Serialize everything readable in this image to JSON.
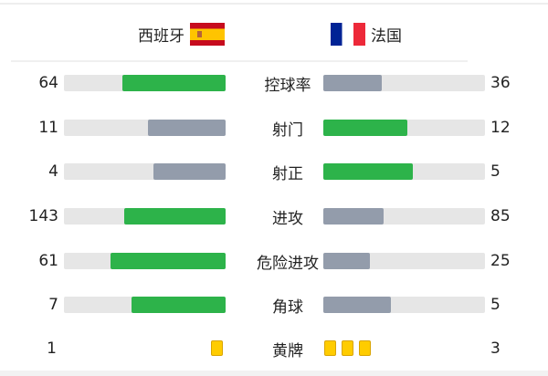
{
  "teams": {
    "home": {
      "name": "西班牙",
      "flag": "spain-flag"
    },
    "away": {
      "name": "法国",
      "flag": "france-flag"
    }
  },
  "colors": {
    "leader": "#2db34a",
    "trailer": "#939cab",
    "track": "#e6e6e6",
    "yellow": "#ffcc00"
  },
  "stats": [
    {
      "label": "控球率",
      "home": "64",
      "away": "36"
    },
    {
      "label": "射门",
      "home": "11",
      "away": "12"
    },
    {
      "label": "射正",
      "home": "4",
      "away": "5"
    },
    {
      "label": "进攻",
      "home": "143",
      "away": "85"
    },
    {
      "label": "危险进攻",
      "home": "61",
      "away": "25"
    },
    {
      "label": "角球",
      "home": "7",
      "away": "5"
    }
  ],
  "yellow_cards": {
    "label": "黄牌",
    "home": "1",
    "away": "3"
  }
}
